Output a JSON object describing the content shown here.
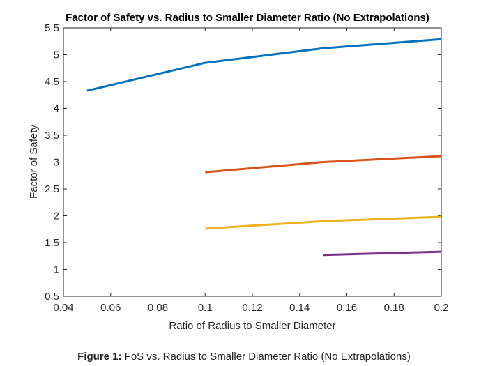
{
  "chart_data": {
    "type": "line",
    "title": "Factor of Safety vs. Radius to Smaller Diameter Ratio (No Extrapolations)",
    "xlabel": "Ratio of Radius to Smaller Diameter",
    "ylabel": "Factor of Safety",
    "xlim": [
      0.04,
      0.2
    ],
    "ylim": [
      0.5,
      5.5
    ],
    "xticks": [
      0.04,
      0.06,
      0.08,
      0.1,
      0.12,
      0.14,
      0.16,
      0.18,
      0.2
    ],
    "xtick_labels": [
      "0.04",
      "0.06",
      "0.08",
      "0.1",
      "0.12",
      "0.14",
      "0.16",
      "0.18",
      "0.2"
    ],
    "yticks": [
      0.5,
      1,
      1.5,
      2,
      2.5,
      3,
      3.5,
      4,
      4.5,
      5,
      5.5
    ],
    "ytick_labels": [
      "0.5",
      "1",
      "1.5",
      "2",
      "2.5",
      "3",
      "3.5",
      "4",
      "4.5",
      "5",
      "5.5"
    ],
    "grid": false,
    "series": [
      {
        "color": "#0072BD",
        "x": [
          0.05,
          0.1,
          0.15,
          0.2
        ],
        "y": [
          4.33,
          4.85,
          5.12,
          5.29
        ]
      },
      {
        "color": "#D95319",
        "x": [
          0.1,
          0.15,
          0.2
        ],
        "y": [
          2.81,
          3.0,
          3.11
        ]
      },
      {
        "color": "#EDB120",
        "x": [
          0.1,
          0.15,
          0.2
        ],
        "y": [
          1.76,
          1.9,
          1.98
        ]
      },
      {
        "color": "#7E2F8E",
        "x": [
          0.15,
          0.2
        ],
        "y": [
          1.27,
          1.33
        ]
      }
    ]
  },
  "caption": {
    "label": "Figure 1:",
    "text": " FoS vs. Radius to Smaller Diameter Ratio (No Extrapolations)"
  }
}
